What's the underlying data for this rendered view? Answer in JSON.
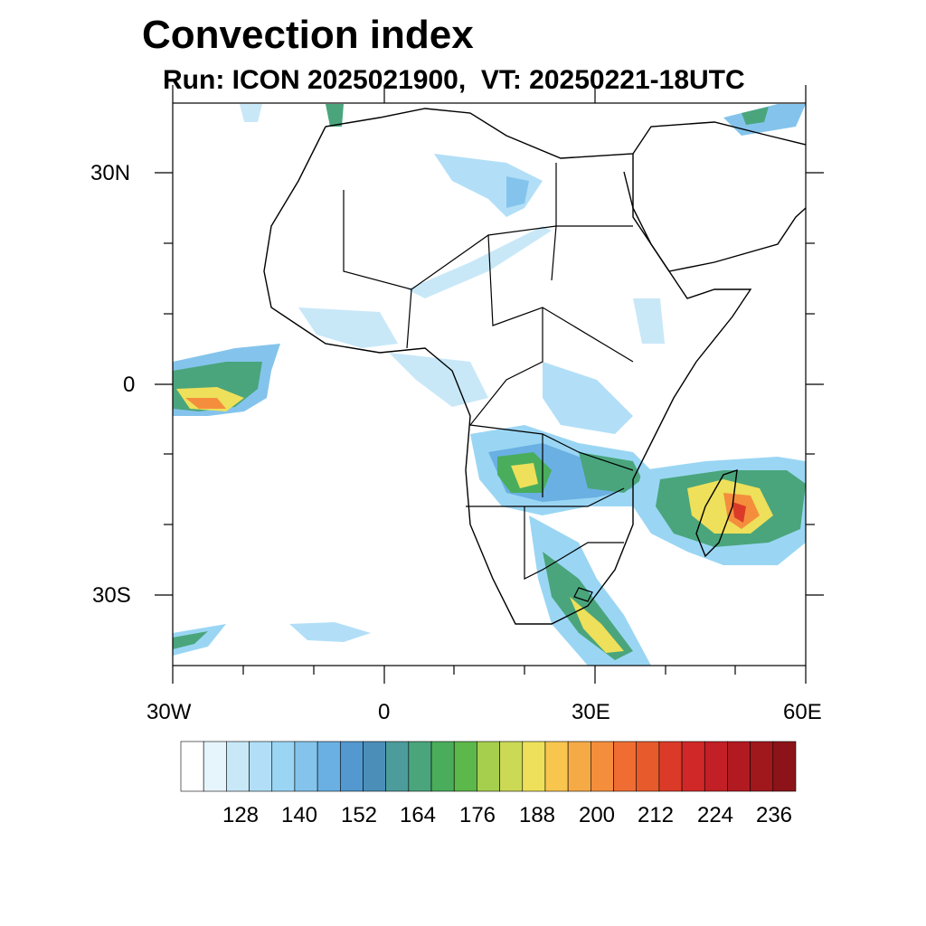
{
  "title": "Convection index",
  "subtitle": "Run: ICON 2025021900,  VT: 20250221-18UTC",
  "lat_labels": [
    "30N",
    "0",
    "30S"
  ],
  "lon_labels": [
    "30W",
    "0",
    "30E",
    "60E"
  ],
  "colorbar": {
    "tick_labels": [
      "128",
      "140",
      "152",
      "164",
      "176",
      "188",
      "200",
      "212",
      "224",
      "236"
    ],
    "colors": [
      "#ffffff",
      "#e6f4fc",
      "#c8e8f8",
      "#b2dff7",
      "#9ad6f4",
      "#84c4ec",
      "#6ab0e2",
      "#5398cf",
      "#4b8fb9",
      "#4c9c9b",
      "#4aa57c",
      "#49ad5c",
      "#5cb84a",
      "#a6cf4e",
      "#cbd955",
      "#eee05a",
      "#f8c64f",
      "#f6aa46",
      "#f48e3d",
      "#ef6d33",
      "#e65a2c",
      "#dc3a28",
      "#d02828",
      "#c21f26",
      "#b21a22",
      "#a0181c",
      "#8c1418"
    ]
  },
  "map": {
    "lon_range": [
      -30,
      60
    ],
    "lat_range": [
      -40,
      40
    ],
    "field": "Convection index"
  }
}
